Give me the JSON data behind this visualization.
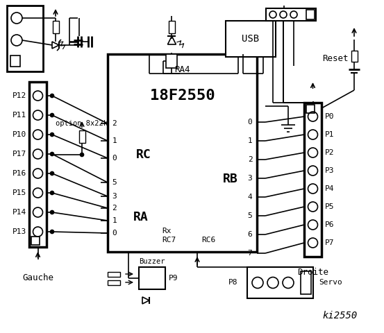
{
  "title": "ki2550",
  "chip_label": "18F2550",
  "chip_ra4": "RA4",
  "chip_rc_label": "RC",
  "chip_ra_label": "RA",
  "chip_rb_label": "RB",
  "chip_rx_label": "Rx",
  "chip_rc7_label": "RC7",
  "chip_rc6_label": "RC6",
  "left_labels": [
    "P12",
    "P11",
    "P10",
    "P17",
    "P16",
    "P15",
    "P14",
    "P13"
  ],
  "right_labels": [
    "P0",
    "P1",
    "P2",
    "P3",
    "P4",
    "P5",
    "P6",
    "P7"
  ],
  "rc_nums": [
    "2",
    "1",
    "0"
  ],
  "ra_nums": [
    "5",
    "3",
    "2",
    "1",
    "0"
  ],
  "rb_nums": [
    "0",
    "1",
    "2",
    "3",
    "4",
    "5",
    "6",
    "7"
  ],
  "gauche": "Gauche",
  "droite": "Droite",
  "option_label": "option 8x22k",
  "usb_label": "USB",
  "reset_label": "Reset",
  "buzzer_label": "Buzzer",
  "p9_label": "P9",
  "p8_label": "P8",
  "servo_label": "Servo",
  "bg_color": "#ffffff",
  "fg_color": "#000000"
}
